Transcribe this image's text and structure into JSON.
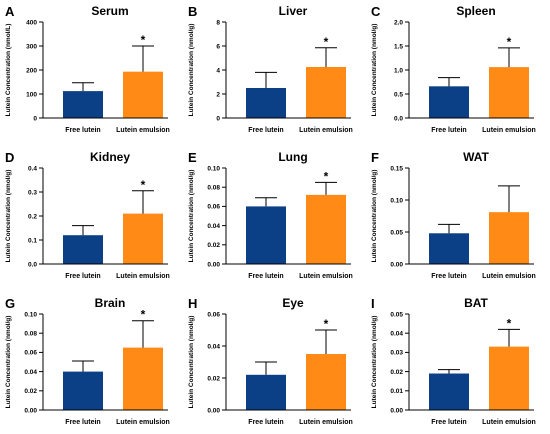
{
  "chart_data": [
    {
      "type": "bar",
      "letter": "A",
      "title": "Serum",
      "ylabel": "Lutein Concentration (nmol/L)",
      "categories": [
        "Free lutein",
        "Lutein emulsion"
      ],
      "values": [
        112,
        193
      ],
      "errors": [
        35,
        107
      ],
      "ylim": [
        0,
        400
      ],
      "yticks": [
        0,
        100,
        200,
        300,
        400
      ],
      "tick_labels": [
        "0",
        "100",
        "200",
        "300",
        "400"
      ],
      "significance": [
        "",
        "*"
      ]
    },
    {
      "type": "bar",
      "letter": "B",
      "title": "Liver",
      "ylabel": "Lutein Concentration (nmol/g)",
      "categories": [
        "Free lutein",
        "Lutein emulsion"
      ],
      "values": [
        2.5,
        4.25
      ],
      "errors": [
        1.3,
        1.6
      ],
      "ylim": [
        0,
        8
      ],
      "yticks": [
        0,
        2,
        4,
        6,
        8
      ],
      "tick_labels": [
        "0",
        "2",
        "4",
        "6",
        "8"
      ],
      "significance": [
        "",
        "*"
      ]
    },
    {
      "type": "bar",
      "letter": "C",
      "title": "Spleen",
      "ylabel": "Lutein Concentration (nmol/g)",
      "categories": [
        "Free lutein",
        "Lutein emulsion"
      ],
      "values": [
        0.66,
        1.06
      ],
      "errors": [
        0.18,
        0.4
      ],
      "ylim": [
        0,
        2.0
      ],
      "yticks": [
        0,
        0.5,
        1.0,
        1.5,
        2.0
      ],
      "tick_labels": [
        "0.0",
        "0.5",
        "1.0",
        "1.5",
        "2.0"
      ],
      "significance": [
        "",
        "*"
      ]
    },
    {
      "type": "bar",
      "letter": "D",
      "title": "Kidney",
      "ylabel": "Lutein Concentration (nmol/g)",
      "categories": [
        "Free lutein",
        "Lutein emulsion"
      ],
      "values": [
        0.12,
        0.21
      ],
      "errors": [
        0.04,
        0.095
      ],
      "ylim": [
        0,
        0.4
      ],
      "yticks": [
        0,
        0.1,
        0.2,
        0.3,
        0.4
      ],
      "tick_labels": [
        "0.0",
        "0.1",
        "0.2",
        "0.3",
        "0.4"
      ],
      "significance": [
        "",
        "*"
      ]
    },
    {
      "type": "bar",
      "letter": "E",
      "title": "Lung",
      "ylabel": "Lutein Concentration (nmol/g)",
      "categories": [
        "Free lutein",
        "Lutein emulsion"
      ],
      "values": [
        0.06,
        0.072
      ],
      "errors": [
        0.009,
        0.013
      ],
      "ylim": [
        0,
        0.1
      ],
      "yticks": [
        0,
        0.02,
        0.04,
        0.06,
        0.08,
        0.1
      ],
      "tick_labels": [
        "0.00",
        "0.02",
        "0.04",
        "0.06",
        "0.08",
        "0.10"
      ],
      "significance": [
        "",
        "*"
      ]
    },
    {
      "type": "bar",
      "letter": "F",
      "title": "WAT",
      "ylabel": "Lutein Concentration (nmol/g)",
      "categories": [
        "Free lutein",
        "Lutein emulsion"
      ],
      "values": [
        0.048,
        0.081
      ],
      "errors": [
        0.014,
        0.041
      ],
      "ylim": [
        0,
        0.15
      ],
      "yticks": [
        0,
        0.05,
        0.1,
        0.15
      ],
      "tick_labels": [
        "0.00",
        "0.05",
        "0.10",
        "0.15"
      ],
      "significance": [
        "",
        ""
      ]
    },
    {
      "type": "bar",
      "letter": "G",
      "title": "Brain",
      "ylabel": "Lutein Concentration (nmol/g)",
      "categories": [
        "Free lutein",
        "Lutein emulsion"
      ],
      "values": [
        0.04,
        0.065
      ],
      "errors": [
        0.011,
        0.028
      ],
      "ylim": [
        0,
        0.1
      ],
      "yticks": [
        0,
        0.02,
        0.04,
        0.06,
        0.08,
        0.1
      ],
      "tick_labels": [
        "0.00",
        "0.02",
        "0.04",
        "0.06",
        "0.08",
        "0.10"
      ],
      "significance": [
        "",
        "*"
      ]
    },
    {
      "type": "bar",
      "letter": "H",
      "title": "Eye",
      "ylabel": "Lutein Concentration (nmol/g)",
      "categories": [
        "Free lutein",
        "Lutein emulsion"
      ],
      "values": [
        0.022,
        0.035
      ],
      "errors": [
        0.008,
        0.015
      ],
      "ylim": [
        0,
        0.06
      ],
      "yticks": [
        0,
        0.02,
        0.04,
        0.06
      ],
      "tick_labels": [
        "0.00",
        "0.02",
        "0.04",
        "0.06"
      ],
      "significance": [
        "",
        "*"
      ]
    },
    {
      "type": "bar",
      "letter": "I",
      "title": "BAT",
      "ylabel": "Lutein Concentration (nmol/g)",
      "categories": [
        "Free lutein",
        "Lutein emulsion"
      ],
      "values": [
        0.019,
        0.033
      ],
      "errors": [
        0.002,
        0.009
      ],
      "ylim": [
        0,
        0.05
      ],
      "yticks": [
        0,
        0.01,
        0.02,
        0.03,
        0.04,
        0.05
      ],
      "tick_labels": [
        "0.00",
        "0.01",
        "0.02",
        "0.03",
        "0.04",
        "0.05"
      ],
      "significance": [
        "",
        "*"
      ]
    }
  ],
  "colors": {
    "free_lutein": "#0b3f86",
    "lutein_emulsion": "#ff8a16",
    "axis": "#000000"
  }
}
